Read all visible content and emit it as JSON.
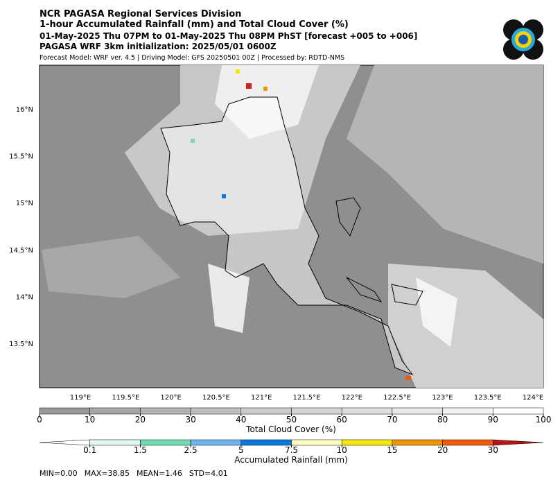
{
  "header": {
    "lines": [
      "NCR PAGASA Regional Services Division",
      "1-hour Accumulated Rainfall (mm) and Total Cloud Cover (%)",
      "01-May-2025 Thu 07PM to 01-May-2025 Thu 08PM PhST [forecast +005 to +006]",
      "PAGASA WRF 3km initialization: 2025/05/01 0600Z"
    ],
    "note": "Forecast Model: WRF ver. 4.5 | Driving Model: GFS 20250501 00Z | Processed by: RDTD-NMS"
  },
  "map": {
    "lon_labels": [
      "119°E",
      "119.5°E",
      "120°E",
      "120.5°E",
      "121°E",
      "121.5°E",
      "122°E",
      "122.5°E",
      "123°E",
      "123.5°E",
      "124°E"
    ],
    "lat_labels": [
      "16°N",
      "15.5°N",
      "15°N",
      "14.5°N",
      "14°N",
      "13.5°N"
    ]
  },
  "cloud_bar": {
    "title": "Total Cloud Cover (%)",
    "ticks": [
      0,
      10,
      20,
      30,
      40,
      50,
      60,
      70,
      80,
      90,
      100
    ],
    "colors": [
      "#999999",
      "#a6a6a6",
      "#b3b3b3",
      "#bfbfbf",
      "#cccccc",
      "#d4d4d4",
      "#dedede",
      "#e8e8e8",
      "#f2f2f2",
      "#ffffff"
    ]
  },
  "rain_bar": {
    "title": "Accumulated Rainfall (mm)",
    "ticks": [
      0.1,
      1.5,
      2.5,
      5,
      7.5,
      10,
      15,
      20,
      30
    ],
    "colors": [
      "#ffffff",
      "#e0f8f0",
      "#70dcb0",
      "#6eb4f0",
      "#0a78dc",
      "#ffffc0",
      "#fae600",
      "#f0960a",
      "#f05a0a",
      "#b41414"
    ]
  },
  "stats": [
    "MIN=0.00",
    "MAX=38.85",
    "MEAN=1.46",
    "STD=4.01"
  ]
}
